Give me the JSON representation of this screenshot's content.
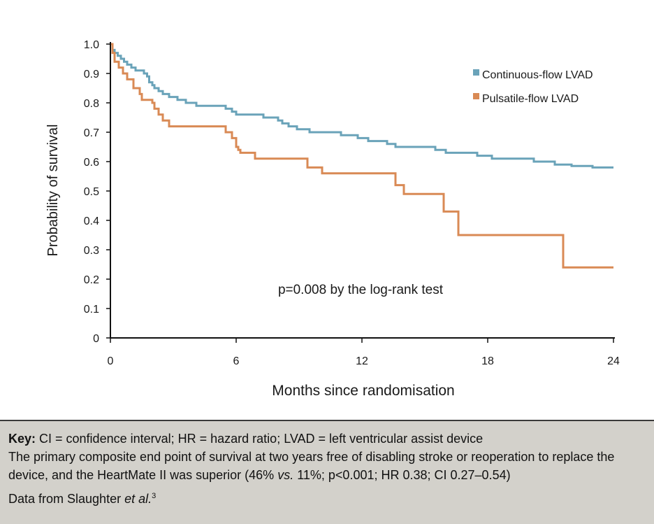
{
  "chart_data": {
    "type": "line",
    "title": "",
    "xlabel": "Months since randomisation",
    "ylabel": "Probability of survival",
    "xlim": [
      0,
      24
    ],
    "ylim": [
      0,
      1.0
    ],
    "x_ticks": [
      0,
      6,
      12,
      18,
      24
    ],
    "x_tick_labels": [
      "0",
      "6",
      "12",
      "18",
      "24"
    ],
    "y_ticks": [
      0,
      0.1,
      0.2,
      0.3,
      0.4,
      0.5,
      0.6,
      0.7,
      0.8,
      0.9,
      1.0
    ],
    "y_tick_labels": [
      "0",
      "0.1",
      "0.2",
      "0.3",
      "0.4",
      "0.5",
      "0.6",
      "0.7",
      "0.8",
      "0.9",
      "1.0"
    ],
    "grid": false,
    "legend_position": "top-right",
    "annotation": "p=0.008 by the log-rank test",
    "series": [
      {
        "name": "Continuous-flow LVAD",
        "color": "#6aa3b9",
        "step": true,
        "points": [
          [
            0,
            1.0
          ],
          [
            0.1,
            0.98
          ],
          [
            0.2,
            0.97
          ],
          [
            0.35,
            0.96
          ],
          [
            0.5,
            0.95
          ],
          [
            0.65,
            0.94
          ],
          [
            0.8,
            0.93
          ],
          [
            1.0,
            0.92
          ],
          [
            1.2,
            0.91
          ],
          [
            1.6,
            0.9
          ],
          [
            1.75,
            0.89
          ],
          [
            1.85,
            0.87
          ],
          [
            2.0,
            0.86
          ],
          [
            2.1,
            0.85
          ],
          [
            2.3,
            0.84
          ],
          [
            2.5,
            0.83
          ],
          [
            2.8,
            0.82
          ],
          [
            3.2,
            0.81
          ],
          [
            3.6,
            0.8
          ],
          [
            4.1,
            0.79
          ],
          [
            5.5,
            0.78
          ],
          [
            5.8,
            0.77
          ],
          [
            6.0,
            0.76
          ],
          [
            7.3,
            0.75
          ],
          [
            8.0,
            0.74
          ],
          [
            8.2,
            0.73
          ],
          [
            8.5,
            0.72
          ],
          [
            8.9,
            0.71
          ],
          [
            9.5,
            0.7
          ],
          [
            11.0,
            0.69
          ],
          [
            11.8,
            0.68
          ],
          [
            12.3,
            0.67
          ],
          [
            13.2,
            0.66
          ],
          [
            13.6,
            0.65
          ],
          [
            15.5,
            0.64
          ],
          [
            16.0,
            0.63
          ],
          [
            17.5,
            0.62
          ],
          [
            18.2,
            0.61
          ],
          [
            20.2,
            0.6
          ],
          [
            21.2,
            0.59
          ],
          [
            22.0,
            0.585
          ],
          [
            23.0,
            0.58
          ],
          [
            24.0,
            0.58
          ]
        ]
      },
      {
        "name": "Pulsatile-flow LVAD",
        "color": "#d98a55",
        "step": true,
        "points": [
          [
            0,
            1.0
          ],
          [
            0.1,
            0.97
          ],
          [
            0.2,
            0.94
          ],
          [
            0.4,
            0.92
          ],
          [
            0.6,
            0.9
          ],
          [
            0.8,
            0.88
          ],
          [
            1.1,
            0.85
          ],
          [
            1.4,
            0.83
          ],
          [
            1.5,
            0.81
          ],
          [
            2.0,
            0.8
          ],
          [
            2.1,
            0.78
          ],
          [
            2.3,
            0.76
          ],
          [
            2.5,
            0.74
          ],
          [
            2.8,
            0.72
          ],
          [
            5.5,
            0.7
          ],
          [
            5.8,
            0.68
          ],
          [
            6.0,
            0.65
          ],
          [
            6.1,
            0.64
          ],
          [
            6.2,
            0.63
          ],
          [
            6.9,
            0.61
          ],
          [
            9.4,
            0.58
          ],
          [
            10.1,
            0.56
          ],
          [
            13.6,
            0.52
          ],
          [
            14.0,
            0.49
          ],
          [
            15.9,
            0.43
          ],
          [
            16.6,
            0.35
          ],
          [
            21.6,
            0.24
          ],
          [
            24.0,
            0.24
          ]
        ]
      }
    ]
  },
  "caption": {
    "key_label": "Key:",
    "key_text": " CI = confidence interval; HR = hazard ratio; LVAD = left ventricular assist device",
    "desc_a": "The primary composite end point of survival at two years free of disabling stroke or reoperation to replace the device, and the HeartMate II was superior (46% ",
    "desc_vs": "vs.",
    "desc_b": " 11%; p<0.001; HR 0.38; CI 0.27–0.54)",
    "source_text": "Data from Slaughter ",
    "source_etal": "et al.",
    "source_ref": "3"
  }
}
